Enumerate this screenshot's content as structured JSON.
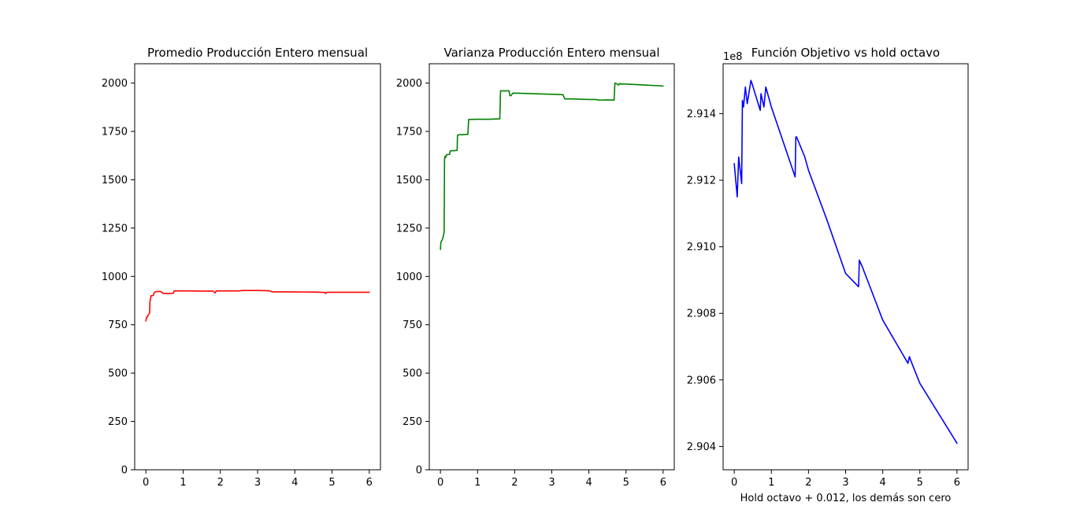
{
  "chart_data": [
    {
      "type": "line",
      "title": "Promedio Producción Entero mensual",
      "xlabel": "",
      "ylabel": "",
      "xlim": [
        -0.3,
        6.3
      ],
      "ylim": [
        0,
        2100
      ],
      "xticks": [
        0,
        1,
        2,
        3,
        4,
        5,
        6
      ],
      "yticks": [
        0,
        250,
        500,
        750,
        1000,
        1250,
        1500,
        1750,
        2000
      ],
      "xtick_labels": [
        "0",
        "1",
        "2",
        "3",
        "4",
        "5",
        "6"
      ],
      "ytick_labels": [
        "0",
        "250",
        "500",
        "750",
        "1000",
        "1250",
        "1500",
        "1750",
        "2000"
      ],
      "series": [
        {
          "name": "promedio",
          "color": "#ff0000",
          "x": [
            0,
            0.02,
            0.04,
            0.06,
            0.1,
            0.11,
            0.12,
            0.14,
            0.16,
            0.2,
            0.22,
            0.25,
            0.3,
            0.4,
            0.46,
            0.5,
            0.6,
            0.74,
            0.76,
            1.0,
            1.2,
            1.5,
            1.8,
            1.86,
            1.89,
            1.92,
            2.0,
            2.5,
            2.6,
            3.0,
            3.3,
            3.4,
            3.43,
            3.5,
            4.0,
            4.5,
            4.7,
            4.8,
            4.83,
            4.86,
            5.0,
            5.5,
            6.0
          ],
          "y": [
            770,
            790,
            790,
            800,
            810,
            870,
            880,
            900,
            900,
            902,
            915,
            920,
            922,
            922,
            913,
            912,
            912,
            913,
            925,
            925,
            925,
            924,
            924,
            915,
            925,
            925,
            925,
            925,
            927,
            927,
            926,
            920,
            920,
            920,
            920,
            919,
            918,
            917,
            912,
            918,
            918,
            918,
            918
          ]
        }
      ]
    },
    {
      "type": "line",
      "title": "Varianza Producción Entero mensual",
      "xlabel": "",
      "ylabel": "",
      "xlim": [
        -0.3,
        6.3
      ],
      "ylim": [
        0,
        2100
      ],
      "xticks": [
        0,
        1,
        2,
        3,
        4,
        5,
        6
      ],
      "yticks": [
        0,
        250,
        500,
        750,
        1000,
        1250,
        1500,
        1750,
        2000
      ],
      "xtick_labels": [
        "0",
        "1",
        "2",
        "3",
        "4",
        "5",
        "6"
      ],
      "ytick_labels": [
        "0",
        "250",
        "500",
        "750",
        "1000",
        "1250",
        "1500",
        "1750",
        "2000"
      ],
      "series": [
        {
          "name": "varianza",
          "color": "#008000",
          "x": [
            0,
            0.01,
            0.02,
            0.05,
            0.08,
            0.1,
            0.11,
            0.12,
            0.14,
            0.16,
            0.2,
            0.25,
            0.26,
            0.3,
            0.35,
            0.45,
            0.46,
            0.5,
            0.6,
            0.74,
            0.76,
            1.0,
            1.3,
            1.6,
            1.62,
            1.65,
            1.85,
            1.87,
            1.9,
            1.95,
            2.0,
            2.5,
            3.0,
            3.3,
            3.35,
            3.5,
            4.0,
            4.2,
            4.25,
            4.5,
            4.68,
            4.7,
            4.73,
            4.76,
            4.8,
            4.83,
            4.86,
            5.0,
            5.5,
            6.0
          ],
          "y": [
            1140,
            1170,
            1180,
            1190,
            1210,
            1230,
            1600,
            1620,
            1615,
            1630,
            1630,
            1632,
            1648,
            1650,
            1650,
            1652,
            1730,
            1733,
            1733,
            1735,
            1812,
            1813,
            1813,
            1815,
            1960,
            1960,
            1960,
            1935,
            1935,
            1948,
            1948,
            1945,
            1942,
            1940,
            1918,
            1918,
            1915,
            1915,
            1912,
            1913,
            1912,
            2000,
            1998,
            1995,
            1990,
            1998,
            1995,
            1995,
            1990,
            1985
          ]
        }
      ]
    },
    {
      "type": "line",
      "title": "Función Objetivo vs hold octavo",
      "offset_text": "1e8",
      "xlabel": "Hold octavo + 0.012, los demás son cero",
      "ylabel": "",
      "xlim": [
        -0.3,
        6.3
      ],
      "ylim": [
        2.9033,
        2.9155
      ],
      "xticks": [
        0,
        1,
        2,
        3,
        4,
        5,
        6
      ],
      "yticks": [
        2.904,
        2.906,
        2.908,
        2.91,
        2.912,
        2.914
      ],
      "xtick_labels": [
        "0",
        "1",
        "2",
        "3",
        "4",
        "5",
        "6"
      ],
      "ytick_labels": [
        "2.904",
        "2.906",
        "2.908",
        "2.910",
        "2.912",
        "2.914"
      ],
      "series": [
        {
          "name": "funcion objetivo",
          "color": "#0000ff",
          "x": [
            0,
            0.08,
            0.12,
            0.2,
            0.22,
            0.25,
            0.3,
            0.35,
            0.45,
            0.48,
            0.7,
            0.72,
            0.74,
            0.8,
            0.85,
            1.0,
            1.64,
            1.66,
            1.68,
            1.9,
            2.0,
            2.5,
            3.0,
            3.35,
            3.37,
            3.45,
            4.0,
            4.68,
            4.72,
            4.75,
            5.0,
            6.0
          ],
          "y": [
            2.9125,
            2.9115,
            2.9127,
            2.9119,
            2.9144,
            2.9142,
            2.9148,
            2.9143,
            2.915,
            2.9149,
            2.9141,
            2.9146,
            2.9145,
            2.9142,
            2.9148,
            2.9142,
            2.9121,
            2.9133,
            2.9133,
            2.9127,
            2.9123,
            2.9108,
            2.9092,
            2.9088,
            2.9096,
            2.9094,
            2.9078,
            2.9065,
            2.9067,
            2.9066,
            2.9059,
            2.9041
          ]
        }
      ]
    }
  ]
}
